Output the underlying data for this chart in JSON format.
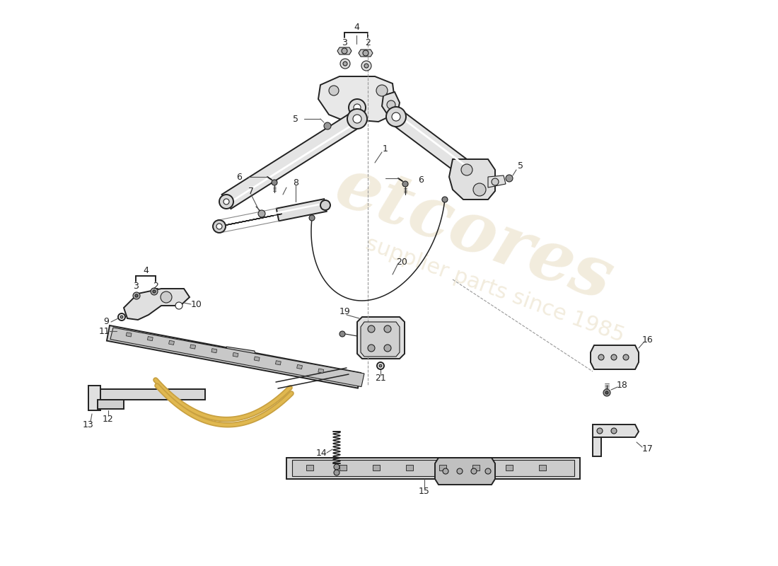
{
  "bg_color": "#ffffff",
  "lc": "#222222",
  "lc_thin": "#444444",
  "gray_fill": "#e0e0e0",
  "gray_dark": "#c0c0c0",
  "gold": "#c8a84b",
  "wm1": "etcores",
  "wm2": "supplier parts since 1985",
  "wm_col": "#d4c090",
  "wm_alpha": 0.3
}
